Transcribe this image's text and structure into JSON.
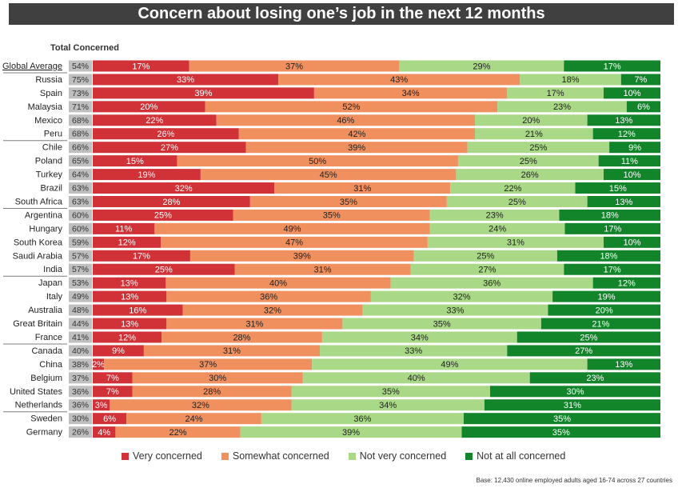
{
  "title": "Concern about losing one’s job in the next 12 months",
  "total_label": "Total Concerned",
  "source": "Base: 12,430 online employed adults aged 16-74 across 27 countries",
  "colors": {
    "very": "#d03237",
    "somewhat": "#f0905f",
    "not_very": "#a9d886",
    "not_at_all": "#12852a",
    "total_bg": "#bfbfbf"
  },
  "legend": [
    {
      "label": "Very concerned",
      "color": "#d03237"
    },
    {
      "label": "Somewhat concerned",
      "color": "#f0905f"
    },
    {
      "label": "Not very concerned",
      "color": "#a9d886"
    },
    {
      "label": "Not at all concerned",
      "color": "#12852a"
    }
  ],
  "chart_data": {
    "type": "bar",
    "orientation": "horizontal",
    "stacked": true,
    "percent": true,
    "title": "Concern about losing one’s job in the next 12 months",
    "categories": [
      "Global Average",
      "Russia",
      "Spain",
      "Malaysia",
      "Mexico",
      "Peru",
      "Chile",
      "Poland",
      "Turkey",
      "Brazil",
      "South Africa",
      "Argentina",
      "Hungary",
      "South Korea",
      "Saudi Arabia",
      "India",
      "Japan",
      "Italy",
      "Australia",
      "Great Britain",
      "France",
      "Canada",
      "China",
      "Belgium",
      "United States",
      "Netherlands",
      "Sweden",
      "Germany"
    ],
    "total_concerned": [
      "54%",
      "75%",
      "73%",
      "71%",
      "68%",
      "68%",
      "66%",
      "65%",
      "64%",
      "63%",
      "63%",
      "60%",
      "60%",
      "59%",
      "57%",
      "57%",
      "53%",
      "49%",
      "48%",
      "44%",
      "41%",
      "40%",
      "38%",
      "37%",
      "36%",
      "36%",
      "30%",
      "26%"
    ],
    "series": [
      {
        "name": "Very concerned",
        "values": [
          17,
          33,
          39,
          20,
          22,
          26,
          27,
          15,
          19,
          32,
          28,
          25,
          11,
          12,
          17,
          25,
          13,
          13,
          16,
          13,
          12,
          9,
          2,
          7,
          7,
          3,
          6,
          4
        ]
      },
      {
        "name": "Somewhat concerned",
        "values": [
          37,
          43,
          34,
          52,
          46,
          42,
          39,
          50,
          45,
          31,
          35,
          35,
          49,
          47,
          39,
          31,
          40,
          36,
          32,
          31,
          28,
          31,
          37,
          30,
          28,
          32,
          24,
          22
        ]
      },
      {
        "name": "Not very concerned",
        "values": [
          29,
          18,
          17,
          23,
          20,
          21,
          25,
          25,
          26,
          22,
          25,
          23,
          24,
          31,
          25,
          27,
          36,
          32,
          33,
          35,
          34,
          33,
          49,
          40,
          35,
          34,
          36,
          39
        ]
      },
      {
        "name": "Not at all concerned",
        "values": [
          17,
          7,
          10,
          6,
          13,
          12,
          9,
          11,
          10,
          15,
          13,
          18,
          17,
          10,
          18,
          17,
          12,
          19,
          20,
          21,
          25,
          27,
          13,
          23,
          30,
          31,
          35,
          35
        ]
      }
    ],
    "value_labels": [
      [
        "17%",
        "33%",
        "39%",
        "20%",
        "22%",
        "26%",
        "27%",
        "15%",
        "19%",
        "32%",
        "28%",
        "25%",
        "11%",
        "12%",
        "17%",
        "25%",
        "13%",
        "13%",
        "16%",
        "13%",
        "12%",
        "9%",
        "2%",
        "7%",
        "7%",
        "3%",
        "6%",
        "4%"
      ],
      [
        "37%",
        "43%",
        "34%",
        "52%",
        "46%",
        "42%",
        "39%",
        "50%",
        "45%",
        "31%",
        "35%",
        "35%",
        "49%",
        "47%",
        "39%",
        "31%",
        "40%",
        "36%",
        "32%",
        "31%",
        "28%",
        "31%",
        "37%",
        "30%",
        "28%",
        "32%",
        "24%",
        "22%"
      ],
      [
        "29%",
        "18%",
        "17%",
        "23%",
        "20%",
        "21%",
        "25%",
        "25%",
        "26%",
        "22%",
        "25%",
        "23%",
        "24%",
        "31%",
        "25%",
        "27%",
        "36%",
        "32%",
        "33%",
        "35%",
        "34%",
        "33%",
        "49%",
        "40%",
        "35%",
        "34%",
        "36%",
        "39%"
      ],
      [
        "17%",
        "7%",
        "10%",
        "6%",
        "13%",
        "12%",
        "9%",
        "11%",
        "10%",
        "15%",
        "13%",
        "18%",
        "17%",
        "10%",
        "18%",
        "17%",
        "12%",
        "19%",
        "20%",
        "21%",
        "25%",
        "27%",
        "13%",
        "23%",
        "30%",
        "31%",
        "35%",
        "35%"
      ]
    ],
    "xlim": [
      0,
      100
    ],
    "legend_position": "bottom"
  }
}
